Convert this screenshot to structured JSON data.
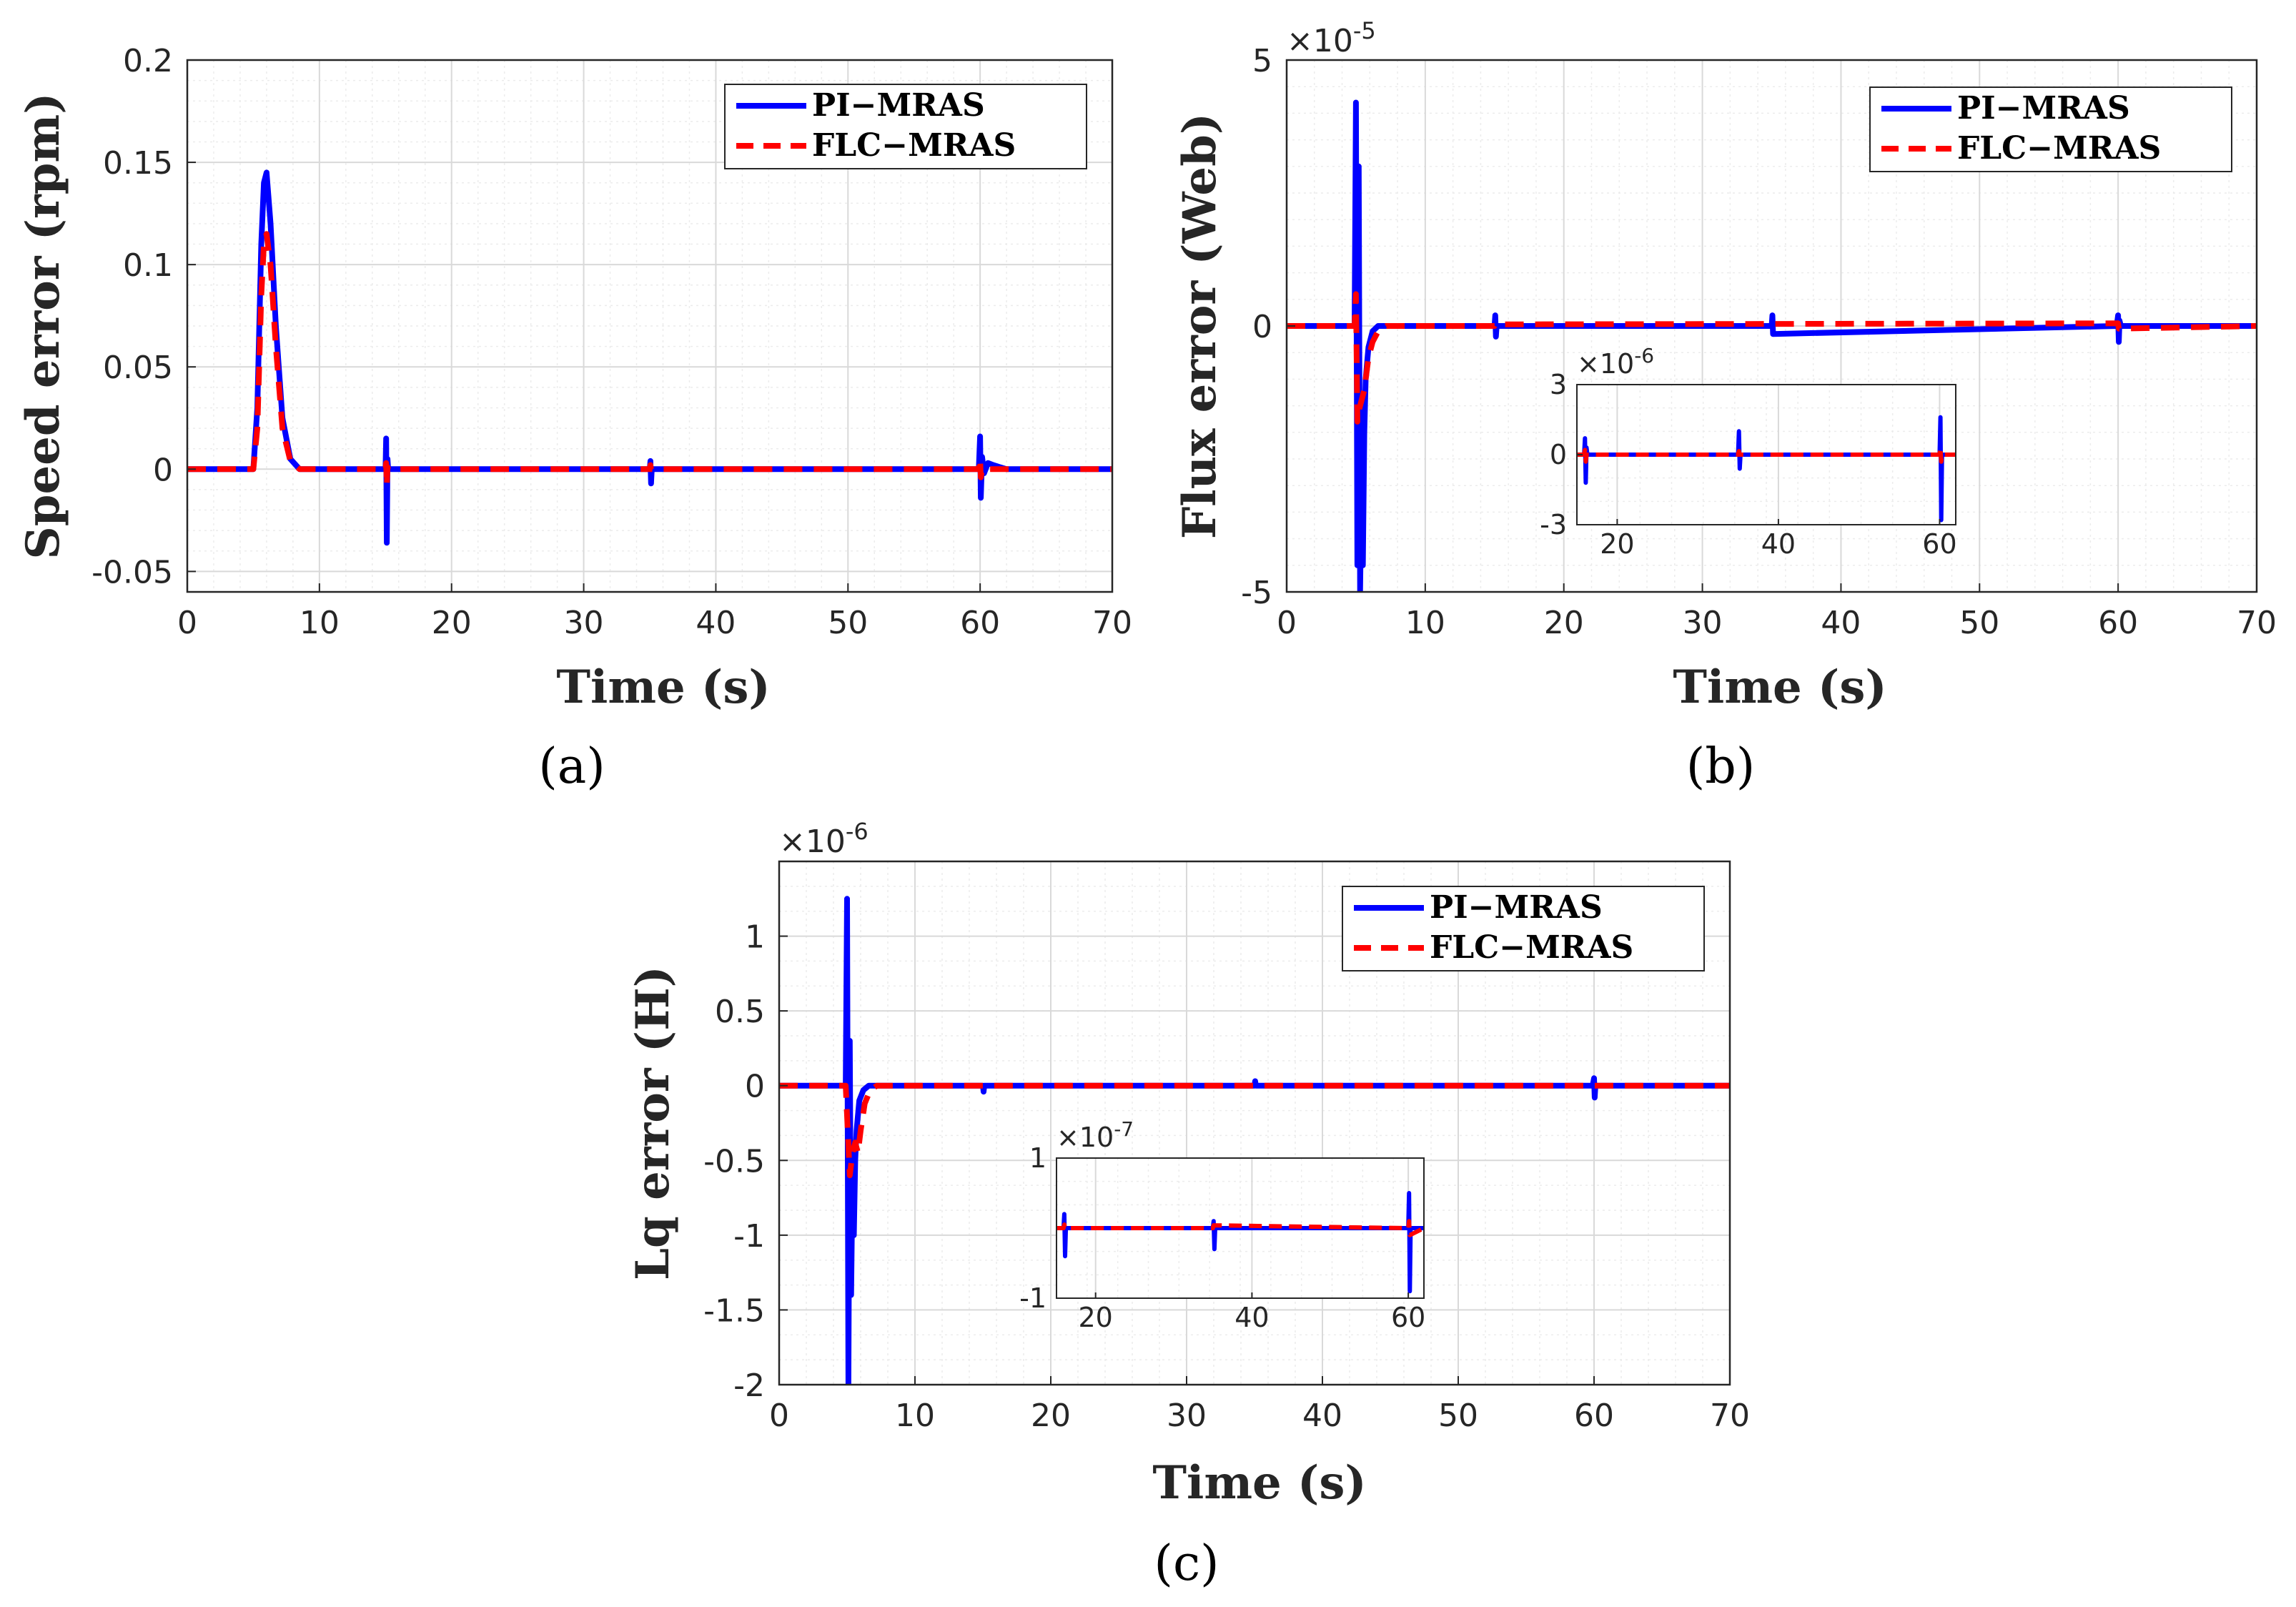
{
  "colors": {
    "pi": "#0000ff",
    "flc": "#ff0000",
    "axis": "#262626",
    "grid_major": "#d9d9d9",
    "grid_minor": "#ececec"
  },
  "chart_data": [
    {
      "type": "line",
      "panel": "(a)",
      "xlabel": "Time (s)",
      "ylabel": "Speed error (rpm)",
      "exponent": "",
      "xlim": [
        0,
        70
      ],
      "ylim": [
        -0.06,
        0.2
      ],
      "xticks": [
        0,
        10,
        20,
        30,
        40,
        50,
        60,
        70
      ],
      "xtick_labels": [
        "0",
        "10",
        "20",
        "30",
        "40",
        "50",
        "60",
        "70"
      ],
      "yticks": [
        -0.05,
        0,
        0.05,
        0.1,
        0.15,
        0.2
      ],
      "ytick_labels": [
        "-0.05",
        "0",
        "0.05",
        "0.1",
        "0.15",
        "0.2"
      ],
      "legend": [
        "PI−MRAS",
        "FLC−MRAS"
      ],
      "legend_position": "top-right",
      "series": [
        {
          "name": "PI−MRAS",
          "style": "solid",
          "x": [
            0,
            5.0,
            5.3,
            5.6,
            5.8,
            6.0,
            6.3,
            6.7,
            7.2,
            7.8,
            8.5,
            15.0,
            15.05,
            15.1,
            15.15,
            15.2,
            35.0,
            35.05,
            35.1,
            35.15,
            59.9,
            60.0,
            60.05,
            60.15,
            60.3,
            60.6,
            61.0,
            62.0,
            70
          ],
          "y": [
            0,
            0,
            0.03,
            0.11,
            0.14,
            0.145,
            0.12,
            0.07,
            0.025,
            0.005,
            0,
            0,
            0.015,
            -0.036,
            0.005,
            0,
            0,
            0.004,
            -0.007,
            0,
            0,
            0.016,
            -0.014,
            0.006,
            -0.002,
            0.003,
            0.002,
            0,
            0
          ]
        },
        {
          "name": "FLC−MRAS",
          "style": "dashed",
          "x": [
            0,
            5.0,
            5.3,
            5.6,
            5.8,
            6.0,
            6.3,
            6.7,
            7.2,
            7.8,
            8.5,
            15.0,
            15.05,
            15.1,
            15.15,
            15.2,
            35.0,
            35.05,
            35.1,
            59.9,
            60.0,
            60.05,
            60.15,
            70
          ],
          "y": [
            0,
            0,
            0.02,
            0.085,
            0.11,
            0.115,
            0.1,
            0.06,
            0.02,
            0.004,
            0,
            0,
            0.003,
            -0.008,
            0.001,
            0,
            0,
            0.002,
            0,
            0,
            0.005,
            -0.004,
            0,
            0
          ]
        }
      ]
    },
    {
      "type": "line",
      "panel": "(b)",
      "xlabel": "Time (s)",
      "ylabel": "Flux error (Web)",
      "exponent": "×10",
      "exponent_power": "-5",
      "xlim": [
        0,
        70
      ],
      "ylim": [
        -5,
        5
      ],
      "xticks": [
        0,
        10,
        20,
        30,
        40,
        50,
        60,
        70
      ],
      "xtick_labels": [
        "0",
        "10",
        "20",
        "30",
        "40",
        "50",
        "60",
        "70"
      ],
      "yticks": [
        -5,
        0,
        5
      ],
      "ytick_labels": [
        "-5",
        "0",
        "5"
      ],
      "legend": [
        "PI−MRAS",
        "FLC−MRAS"
      ],
      "legend_position": "top-right",
      "series": [
        {
          "name": "PI−MRAS",
          "style": "solid",
          "x": [
            0,
            4.9,
            5.0,
            5.1,
            5.2,
            5.3,
            5.4,
            5.5,
            5.6,
            5.7,
            5.9,
            6.2,
            6.6,
            7.2,
            15.0,
            15.05,
            15.1,
            15.15,
            35.0,
            35.05,
            35.1,
            59.9,
            60.0,
            60.05,
            60.1,
            60.2,
            70
          ],
          "y": [
            0,
            0,
            4.2,
            -4.5,
            3.0,
            -5.0,
            -3.0,
            -4.5,
            -2.0,
            -1.0,
            -0.4,
            -0.1,
            0,
            0,
            0,
            0.2,
            -0.2,
            0,
            0,
            0.2,
            -0.15,
            0,
            0.2,
            -0.3,
            0.1,
            0,
            0
          ]
        },
        {
          "name": "FLC−MRAS",
          "style": "dashed",
          "x": [
            0,
            4.9,
            5.0,
            5.1,
            5.2,
            5.4,
            5.6,
            5.9,
            6.2,
            6.6,
            7.2,
            15.0,
            15.05,
            60.0,
            60.05,
            70
          ],
          "y": [
            0,
            0,
            0.6,
            -1.8,
            -1.6,
            -1.4,
            -1.2,
            -0.6,
            -0.3,
            -0.1,
            0,
            0,
            0.03,
            0.05,
            -0.05,
            0
          ]
        }
      ],
      "inset": {
        "exponent": "×10",
        "exponent_power": "-6",
        "xlim": [
          15,
          62
        ],
        "ylim": [
          -3,
          3
        ],
        "xticks": [
          20,
          40,
          60
        ],
        "xtick_labels": [
          "20",
          "40",
          "60"
        ],
        "yticks": [
          -3,
          0,
          3
        ],
        "ytick_labels": [
          "-3",
          "0",
          "3"
        ],
        "series": [
          {
            "name": "PI−MRAS",
            "style": "solid",
            "x": [
              15,
              15.9,
              16.0,
              16.1,
              16.2,
              16.3,
              35.0,
              35.1,
              35.2,
              35.3,
              60.0,
              60.1,
              60.2,
              60.3,
              62
            ],
            "y": [
              0,
              0,
              0.7,
              -1.2,
              0.3,
              0,
              0,
              1.0,
              -0.6,
              0,
              0,
              1.6,
              -2.8,
              0,
              0
            ]
          },
          {
            "name": "FLC−MRAS",
            "style": "dashed",
            "x": [
              15,
              15.9,
              16.0,
              16.1,
              16.2,
              35.0,
              35.1,
              35.2,
              60.0,
              60.1,
              60.2,
              60.3,
              62
            ],
            "y": [
              0,
              0,
              0.2,
              -0.3,
              0,
              0,
              0.15,
              0,
              0,
              0.3,
              -0.3,
              0,
              0
            ]
          }
        ]
      }
    },
    {
      "type": "line",
      "panel": "(c)",
      "xlabel": "Time (s)",
      "ylabel": "Lq error (H)",
      "exponent": "×10",
      "exponent_power": "-6",
      "xlim": [
        0,
        70
      ],
      "ylim": [
        -2,
        1.5
      ],
      "xticks": [
        0,
        10,
        20,
        30,
        40,
        50,
        60,
        70
      ],
      "xtick_labels": [
        "0",
        "10",
        "20",
        "30",
        "40",
        "50",
        "60",
        "70"
      ],
      "yticks": [
        -2,
        -1.5,
        -1,
        -0.5,
        0,
        0.5,
        1
      ],
      "ytick_labels": [
        "-2",
        "-1.5",
        "-1",
        "-0.5",
        "0",
        "0.5",
        "1"
      ],
      "legend": [
        "PI−MRAS",
        "FLC−MRAS"
      ],
      "legend_position": "top-right",
      "series": [
        {
          "name": "PI−MRAS",
          "style": "solid",
          "x": [
            0,
            4.9,
            5.0,
            5.1,
            5.2,
            5.3,
            5.4,
            5.5,
            5.6,
            5.7,
            5.9,
            6.2,
            6.6,
            7.2,
            15.0,
            15.05,
            15.1,
            35.0,
            35.05,
            35.1,
            59.9,
            60.0,
            60.05,
            60.1,
            70
          ],
          "y": [
            0,
            0,
            1.25,
            -2.0,
            0.3,
            -1.4,
            -0.6,
            -1.0,
            -0.5,
            -0.3,
            -0.1,
            -0.03,
            0,
            0,
            0,
            -0.04,
            0,
            0,
            0.03,
            0,
            0,
            0.05,
            -0.08,
            0,
            0
          ]
        },
        {
          "name": "FLC−MRAS",
          "style": "dashed",
          "x": [
            0,
            4.9,
            5.0,
            5.2,
            5.4,
            5.6,
            5.8,
            6.0,
            6.3,
            6.7,
            7.2,
            70
          ],
          "y": [
            0,
            0,
            -0.2,
            -0.6,
            -0.45,
            -0.38,
            -0.45,
            -0.3,
            -0.12,
            -0.03,
            0,
            0
          ]
        }
      ],
      "inset": {
        "exponent": "×10",
        "exponent_power": "-7",
        "xlim": [
          15,
          62
        ],
        "ylim": [
          -1,
          1
        ],
        "xticks": [
          20,
          40,
          60
        ],
        "xtick_labels": [
          "20",
          "40",
          "60"
        ],
        "yticks": [
          -1,
          1
        ],
        "ytick_labels": [
          "-1",
          "1"
        ],
        "series": [
          {
            "name": "PI−MRAS",
            "style": "solid",
            "x": [
              15,
              15.9,
              16.0,
              16.1,
              16.2,
              35.0,
              35.1,
              35.2,
              35.3,
              60.0,
              60.1,
              60.2,
              60.3,
              62
            ],
            "y": [
              0,
              0,
              0.2,
              -0.4,
              0,
              0,
              0.1,
              -0.3,
              0,
              0,
              0.5,
              -0.9,
              0,
              0
            ]
          },
          {
            "name": "FLC−MRAS",
            "style": "dashed",
            "x": [
              15,
              15.9,
              16.0,
              16.1,
              35.0,
              35.1,
              60.0,
              60.1,
              60.2,
              62
            ],
            "y": [
              0,
              0,
              0.05,
              0,
              0,
              0.04,
              0,
              0.1,
              -0.1,
              0
            ]
          }
        ]
      }
    }
  ]
}
